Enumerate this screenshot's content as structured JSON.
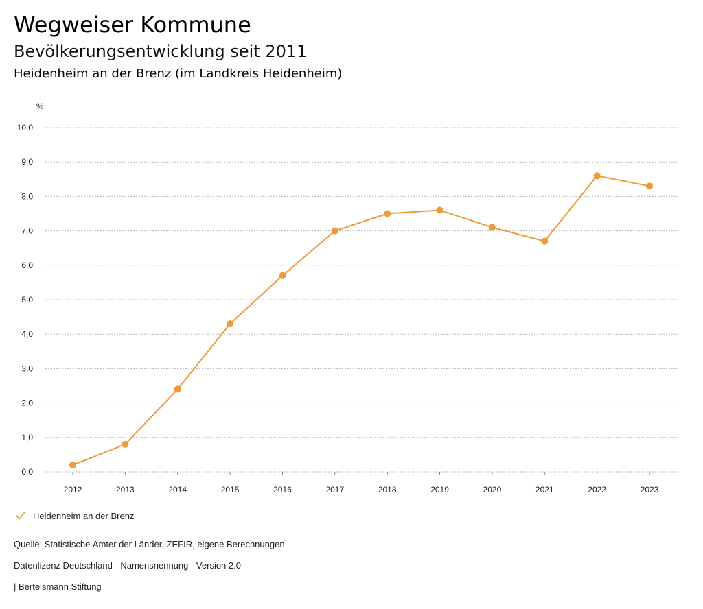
{
  "header": {
    "title": "Wegweiser Kommune",
    "subtitle": "Bevölkerungsentwicklung seit 2011",
    "region": "Heidenheim an der Brenz (im Landkreis Heidenheim)"
  },
  "chart_data": {
    "type": "line",
    "title": "Bevölkerungsentwicklung seit 2011",
    "xlabel": "",
    "ylabel": "%",
    "x": [
      "2012",
      "2013",
      "2014",
      "2015",
      "2016",
      "2017",
      "2018",
      "2019",
      "2020",
      "2021",
      "2022",
      "2023"
    ],
    "series": [
      {
        "name": "Heidenheim an der Brenz",
        "values": [
          0.2,
          0.8,
          2.4,
          4.3,
          5.7,
          7.0,
          7.5,
          7.6,
          7.1,
          6.7,
          8.6,
          8.3
        ],
        "color": "#ec9a3a"
      }
    ],
    "ylim": [
      0,
      10
    ],
    "yticks": [
      "0,0",
      "1,0",
      "2,0",
      "3,0",
      "4,0",
      "5,0",
      "6,0",
      "7,0",
      "8,0",
      "9,0",
      "10,0"
    ],
    "grid": true,
    "legend_position": "bottom-left"
  },
  "legend": {
    "icon": "check-icon",
    "label": "Heidenheim an der Brenz"
  },
  "footer": {
    "source": "Quelle: Statistische Ämter der Länder, ZEFIR, eigene Berechnungen",
    "license": "Datenlizenz Deutschland - Namensnennung - Version 2.0",
    "publisher": "| Bertelsmann Stiftung"
  },
  "colors": {
    "series": "#ec9a3a",
    "grid": "#b5b5b5",
    "text": "#222222"
  }
}
